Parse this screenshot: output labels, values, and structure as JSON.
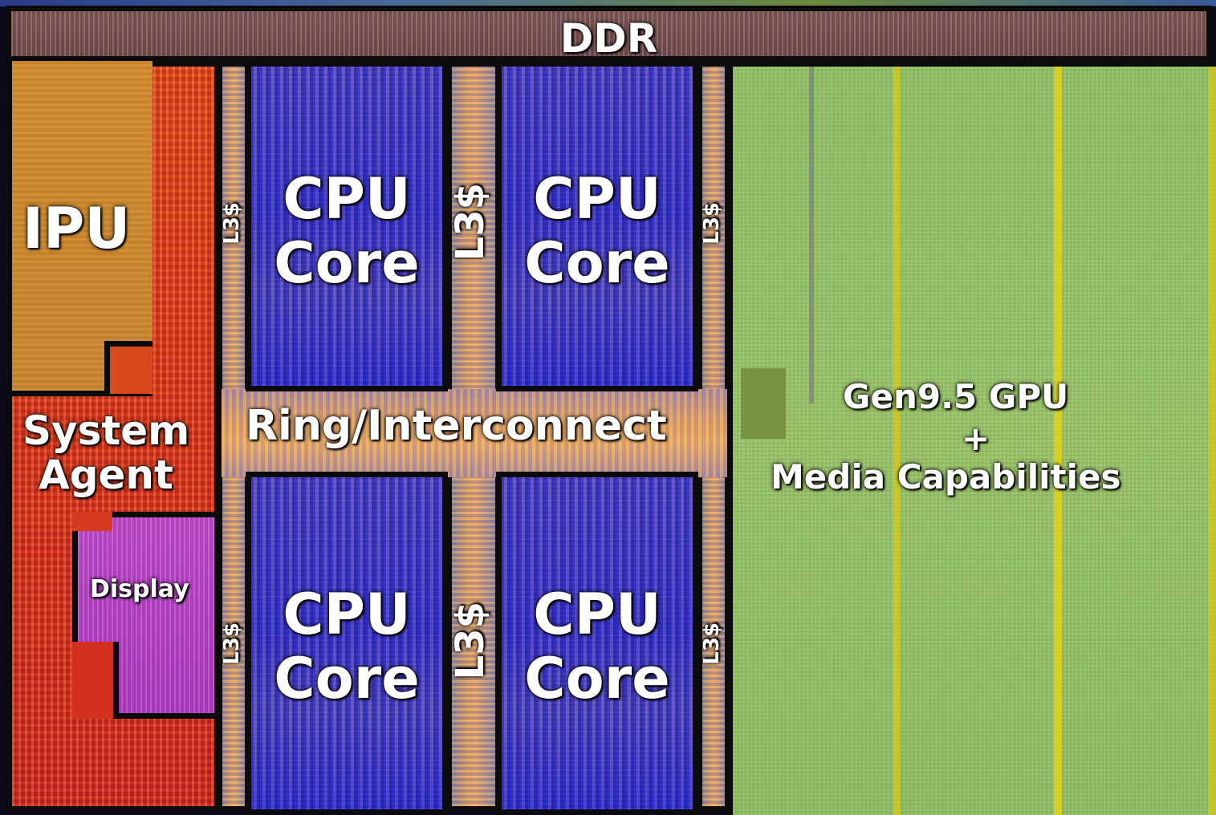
{
  "labels": {
    "ddr": "DDR",
    "ipu": "IPU",
    "system_agent_line1": "System",
    "system_agent_line2": "Agent",
    "display": "Display",
    "cpu_core_line1": "CPU",
    "cpu_core_line2": "Core",
    "l3_cache": "L3$",
    "ring": "Ring/Interconnect",
    "gpu_line1": "Gen9.5 GPU",
    "gpu_line2": "+",
    "gpu_line3": "Media Capabilities"
  },
  "colors": {
    "ddr": "#74525a",
    "ipu": "#cf8a30",
    "system_agent": "#dc3c1e",
    "display": "#b64cc0",
    "cpu_core": "#4540c4",
    "l3_cache": "#d99a5a",
    "ring": "#e8a466",
    "gpu": "#92c06a",
    "border": "#0b0b0b"
  }
}
